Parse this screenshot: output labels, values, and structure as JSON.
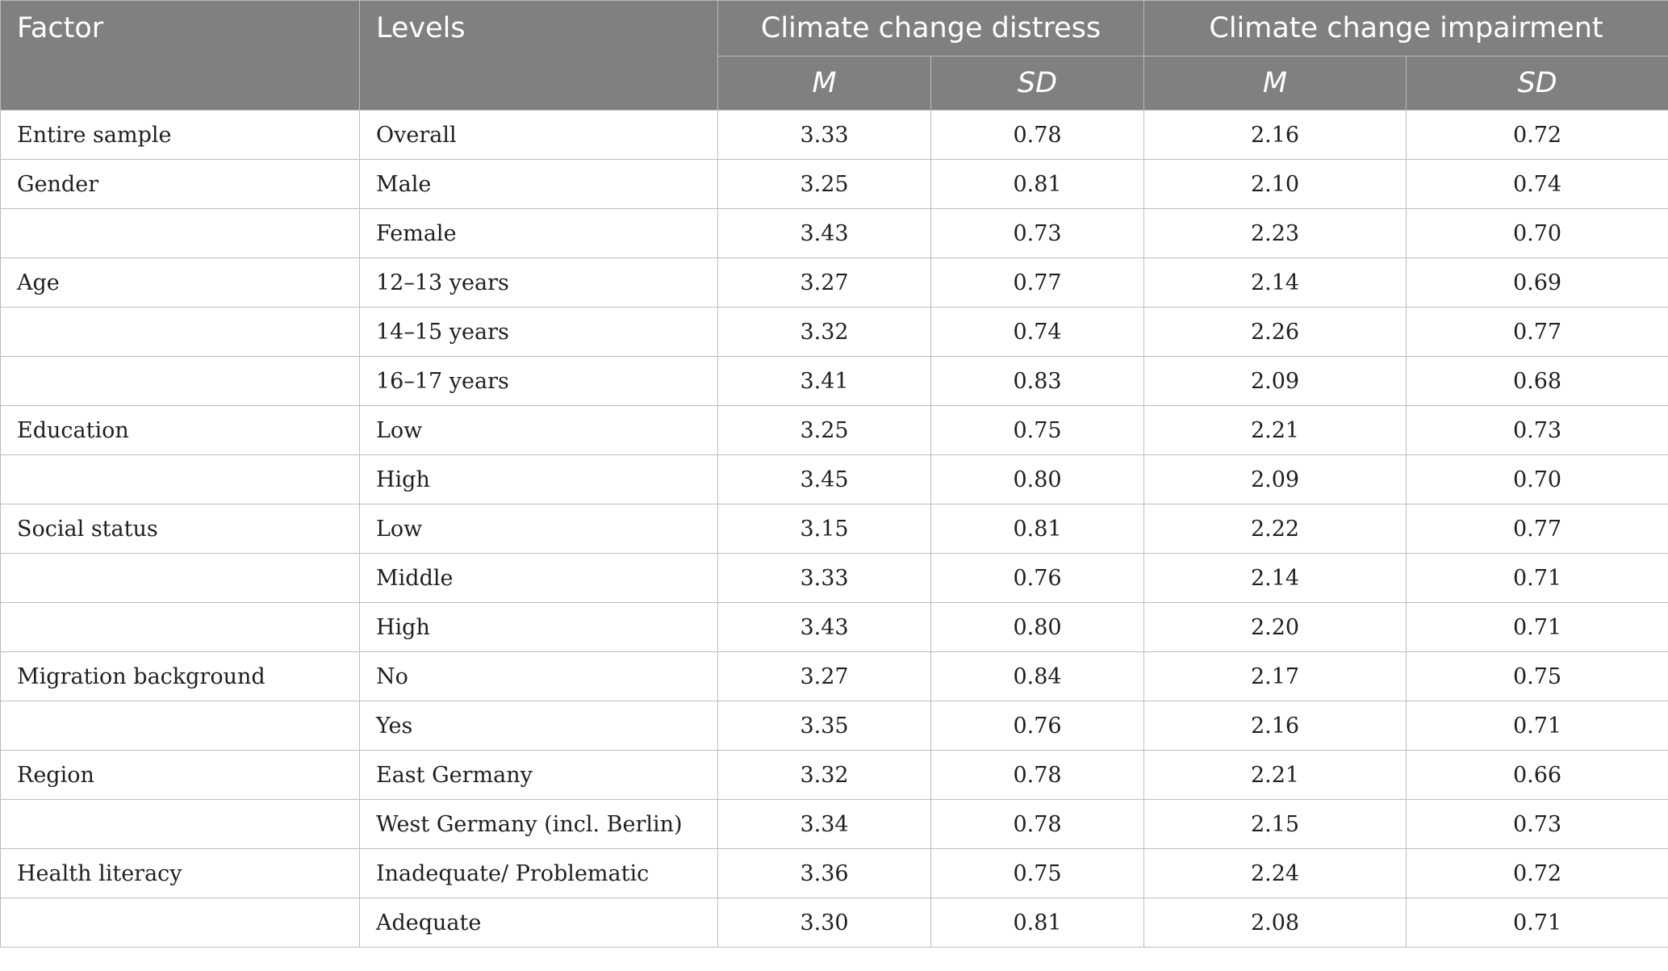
{
  "header": {
    "factor": "Factor",
    "levels": "Levels",
    "distress": "Climate change distress",
    "impairment": "Climate change impairment",
    "m": "M",
    "sd": "SD"
  },
  "rows": [
    {
      "factor": "Entire sample",
      "level": "Overall",
      "dist_m": "3.33",
      "dist_sd": "0.78",
      "imp_m": "2.16",
      "imp_sd": "0.72"
    },
    {
      "factor": "Gender",
      "level": "Male",
      "dist_m": "3.25",
      "dist_sd": "0.81",
      "imp_m": "2.10",
      "imp_sd": "0.74"
    },
    {
      "factor": "",
      "level": "Female",
      "dist_m": "3.43",
      "dist_sd": "0.73",
      "imp_m": "2.23",
      "imp_sd": "0.70"
    },
    {
      "factor": "Age",
      "level": "12–13 years",
      "dist_m": "3.27",
      "dist_sd": "0.77",
      "imp_m": "2.14",
      "imp_sd": "0.69"
    },
    {
      "factor": "",
      "level": "14–15 years",
      "dist_m": "3.32",
      "dist_sd": "0.74",
      "imp_m": "2.26",
      "imp_sd": "0.77"
    },
    {
      "factor": "",
      "level": "16–17 years",
      "dist_m": "3.41",
      "dist_sd": "0.83",
      "imp_m": "2.09",
      "imp_sd": "0.68"
    },
    {
      "factor": "Education",
      "level": "Low",
      "dist_m": "3.25",
      "dist_sd": "0.75",
      "imp_m": "2.21",
      "imp_sd": "0.73"
    },
    {
      "factor": "",
      "level": "High",
      "dist_m": "3.45",
      "dist_sd": "0.80",
      "imp_m": "2.09",
      "imp_sd": "0.70"
    },
    {
      "factor": "Social status",
      "level": "Low",
      "dist_m": "3.15",
      "dist_sd": "0.81",
      "imp_m": "2.22",
      "imp_sd": "0.77"
    },
    {
      "factor": "",
      "level": "Middle",
      "dist_m": "3.33",
      "dist_sd": "0.76",
      "imp_m": "2.14",
      "imp_sd": "0.71"
    },
    {
      "factor": "",
      "level": "High",
      "dist_m": "3.43",
      "dist_sd": "0.80",
      "imp_m": "2.20",
      "imp_sd": "0.71"
    },
    {
      "factor": "Migration background",
      "level": "No",
      "dist_m": "3.27",
      "dist_sd": "0.84",
      "imp_m": "2.17",
      "imp_sd": "0.75"
    },
    {
      "factor": "",
      "level": "Yes",
      "dist_m": "3.35",
      "dist_sd": "0.76",
      "imp_m": "2.16",
      "imp_sd": "0.71"
    },
    {
      "factor": "Region",
      "level": "East Germany",
      "dist_m": "3.32",
      "dist_sd": "0.78",
      "imp_m": "2.21",
      "imp_sd": "0.66"
    },
    {
      "factor": "",
      "level": "West Germany (incl. Berlin)",
      "dist_m": "3.34",
      "dist_sd": "0.78",
      "imp_m": "2.15",
      "imp_sd": "0.73"
    },
    {
      "factor": "Health literacy",
      "level": "Inadequate/ Problematic",
      "dist_m": "3.36",
      "dist_sd": "0.75",
      "imp_m": "2.24",
      "imp_sd": "0.72"
    },
    {
      "factor": "",
      "level": "Adequate",
      "dist_m": "3.30",
      "dist_sd": "0.81",
      "imp_m": "2.08",
      "imp_sd": "0.71"
    }
  ]
}
